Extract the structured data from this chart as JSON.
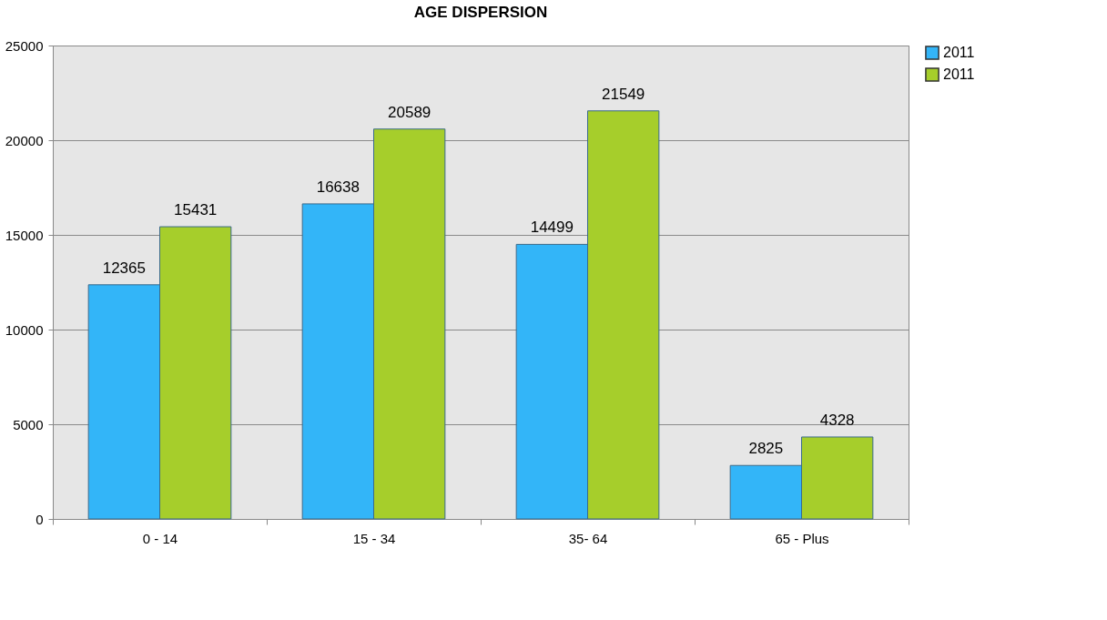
{
  "chart_data": {
    "type": "bar",
    "title": "AGE DISPERSION",
    "categories": [
      "0 - 14",
      "15 - 34",
      "35- 64",
      "65 - Plus"
    ],
    "series": [
      {
        "name": "2011",
        "color": "#33b5f8",
        "values": [
          12365,
          16638,
          14499,
          2825
        ]
      },
      {
        "name": "2011",
        "color": "#a6ce2b",
        "values": [
          15431,
          20589,
          21549,
          4328
        ]
      }
    ],
    "ylim": [
      0,
      25000
    ],
    "yticks": [
      0,
      5000,
      10000,
      15000,
      20000,
      25000
    ],
    "grid": "y",
    "legend": "right",
    "data_labels": true
  }
}
